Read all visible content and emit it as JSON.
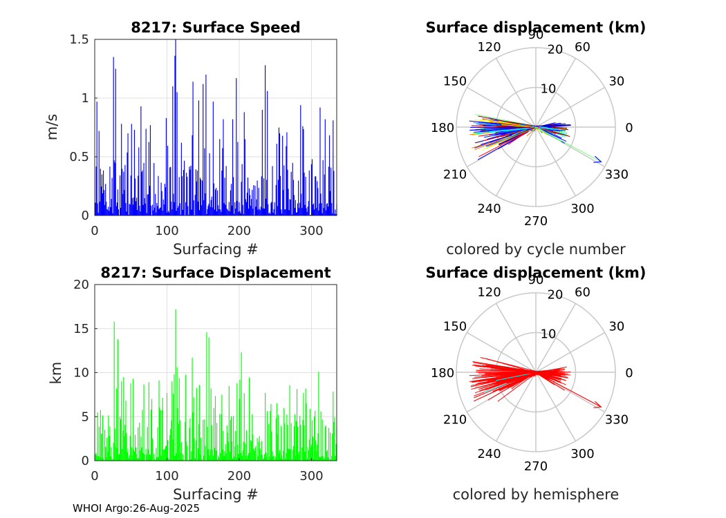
{
  "footer": {
    "credit": "WHOI Argo:26-Aug-2025"
  },
  "chart_data": [
    {
      "type": "bar",
      "title": "8217: Surface Speed",
      "xlabel": "Surfacing #",
      "ylabel": "m/s",
      "xlim": [
        0,
        335
      ],
      "ylim": [
        0,
        1.5
      ],
      "xticks": [
        "0",
        "100",
        "200",
        "300"
      ],
      "yticks": [
        "0",
        "0.5",
        "1",
        "1.5"
      ],
      "color": "#0000ff",
      "grid": true
    },
    {
      "type": "bar",
      "title": "8217: Surface Displacement",
      "xlabel": "Surfacing #",
      "ylabel": "km",
      "xlim": [
        0,
        335
      ],
      "ylim": [
        0,
        20
      ],
      "xticks": [
        "0",
        "100",
        "200",
        "300"
      ],
      "yticks": [
        "0",
        "5",
        "10",
        "15",
        "20"
      ],
      "color": "#00ff00",
      "grid": true
    },
    {
      "type": "polar",
      "title": "Surface displacement (km)",
      "xlabel": "colored by cycle number",
      "rlim": [
        0,
        20
      ],
      "rticks": [
        "10",
        "20"
      ],
      "angle_ticks": [
        "0",
        "30",
        "60",
        "90",
        "120",
        "150",
        "180",
        "210",
        "240",
        "270",
        "300",
        "330"
      ],
      "colormap": [
        "#00008f",
        "#0000ff",
        "#0080ff",
        "#00ffff",
        "#80ff80",
        "#ffff00",
        "#ff8000",
        "#ff0000",
        "#800000"
      ]
    },
    {
      "type": "polar",
      "title": "Surface displacement (km)",
      "xlabel": "colored by hemisphere",
      "rlim": [
        0,
        20
      ],
      "rticks": [
        "10",
        "20"
      ],
      "angle_ticks": [
        "0",
        "30",
        "60",
        "90",
        "120",
        "150",
        "180",
        "210",
        "240",
        "270",
        "300",
        "330"
      ],
      "colors": {
        "main": "#ff0000",
        "secondary": "#00ffff"
      }
    }
  ]
}
